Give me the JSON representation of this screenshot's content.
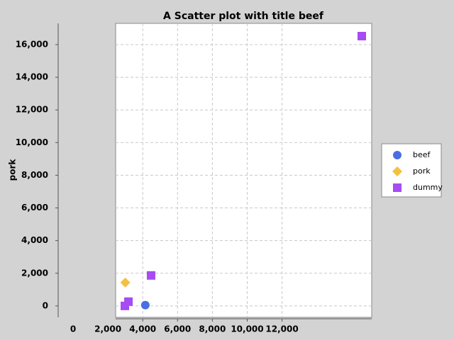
{
  "chart_data": {
    "type": "scatter",
    "title": "A Scatter plot with title beef",
    "y_label": "pork",
    "series": [
      {
        "name": "beef",
        "color": "#4a6fe3",
        "marker": "circle",
        "x": [
          4150
        ],
        "values": [
          50
        ]
      },
      {
        "name": "pork",
        "color": "#f4c042",
        "marker": "diamond",
        "x": [
          3000
        ],
        "values": [
          1430
        ]
      },
      {
        "name": "dummy",
        "color": "#a64cf2",
        "marker": "square",
        "x": [
          2975,
          3180,
          4480,
          16580
        ],
        "values": [
          0,
          260,
          1865,
          16520
        ]
      }
    ],
    "xlim": [
      0,
      17150
    ],
    "ylim": [
      -700,
      17300
    ],
    "xticks": [
      0,
      {
        "value": 2000,
        "label": "2,000"
      },
      {
        "value": 4000,
        "label": "4,000"
      },
      {
        "value": 6000,
        "label": "6,000"
      },
      {
        "value": 8000,
        "label": "8,000"
      },
      {
        "value": 10000,
        "label": "10,000"
      },
      {
        "value": 12000,
        "label": "12,000"
      }
    ],
    "yticks": [
      0,
      {
        "value": 2000,
        "label": "2,000"
      },
      {
        "value": 4000,
        "label": "4,000"
      },
      {
        "value": 6000,
        "label": "6,000"
      },
      {
        "value": 8000,
        "label": "8,000"
      },
      {
        "value": 10000,
        "label": "10,000"
      },
      {
        "value": 12000,
        "label": "12,000"
      },
      {
        "value": 14000,
        "label": "14,000"
      },
      {
        "value": 16000,
        "label": "16,000"
      }
    ],
    "grid": true,
    "legend": "right"
  }
}
